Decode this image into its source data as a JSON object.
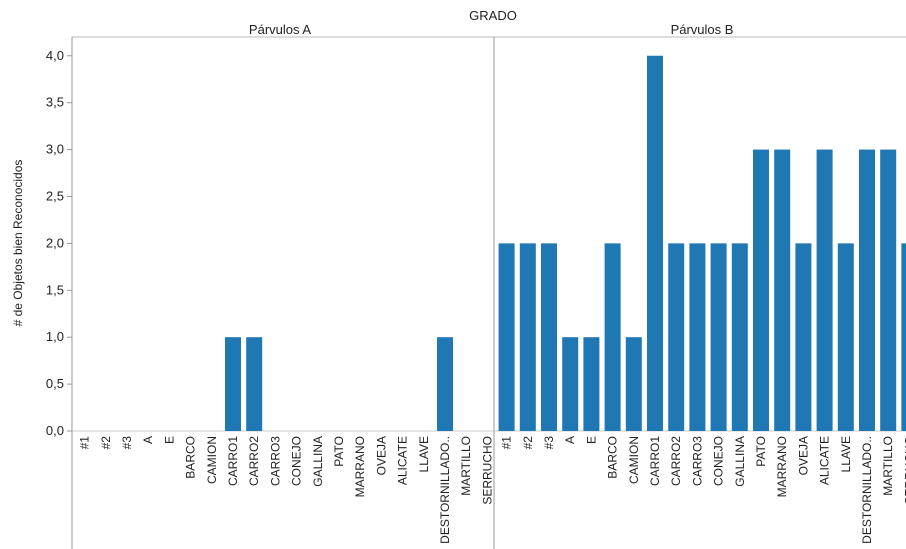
{
  "chart_data": {
    "type": "bar",
    "title": "GRADO",
    "ylabel": "# de Objetos bien Reconocidos",
    "ylim": [
      0,
      4.2
    ],
    "yticks": [
      "0,0",
      "0,5",
      "1,0",
      "1,5",
      "2,0",
      "2,5",
      "3,0",
      "3,5",
      "4,0"
    ],
    "bar_color": "#1f77b4",
    "grid": false,
    "panels": [
      {
        "name": "Párvulos A",
        "categories": [
          "#1",
          "#2",
          "#3",
          "A",
          "E",
          "BARCO",
          "CAMION",
          "CARRO1",
          "CARRO2",
          "CARRO3",
          "CONEJO",
          "GALLINA",
          "PATO",
          "MARRANO",
          "OVEJA",
          "ALICATE",
          "LLAVE",
          "DESTORNILLADO..",
          "MARTILLO",
          "SERRUCHO"
        ],
        "values": [
          0,
          0,
          0,
          0,
          0,
          0,
          0,
          1,
          1,
          0,
          0,
          0,
          0,
          0,
          0,
          0,
          0,
          1,
          0,
          0
        ]
      },
      {
        "name": "Párvulos B",
        "categories": [
          "#1",
          "#2",
          "#3",
          "A",
          "E",
          "BARCO",
          "CAMION",
          "CARRO1",
          "CARRO2",
          "CARRO3",
          "CONEJO",
          "GALLINA",
          "PATO",
          "MARRANO",
          "OVEJA",
          "ALICATE",
          "LLAVE",
          "DESTORNILLADO..",
          "MARTILLO",
          "SERRUCHO"
        ],
        "values": [
          2,
          2,
          2,
          1,
          1,
          2,
          1,
          4,
          2,
          2,
          2,
          2,
          3,
          3,
          2,
          3,
          2,
          3,
          3,
          2
        ]
      }
    ]
  }
}
